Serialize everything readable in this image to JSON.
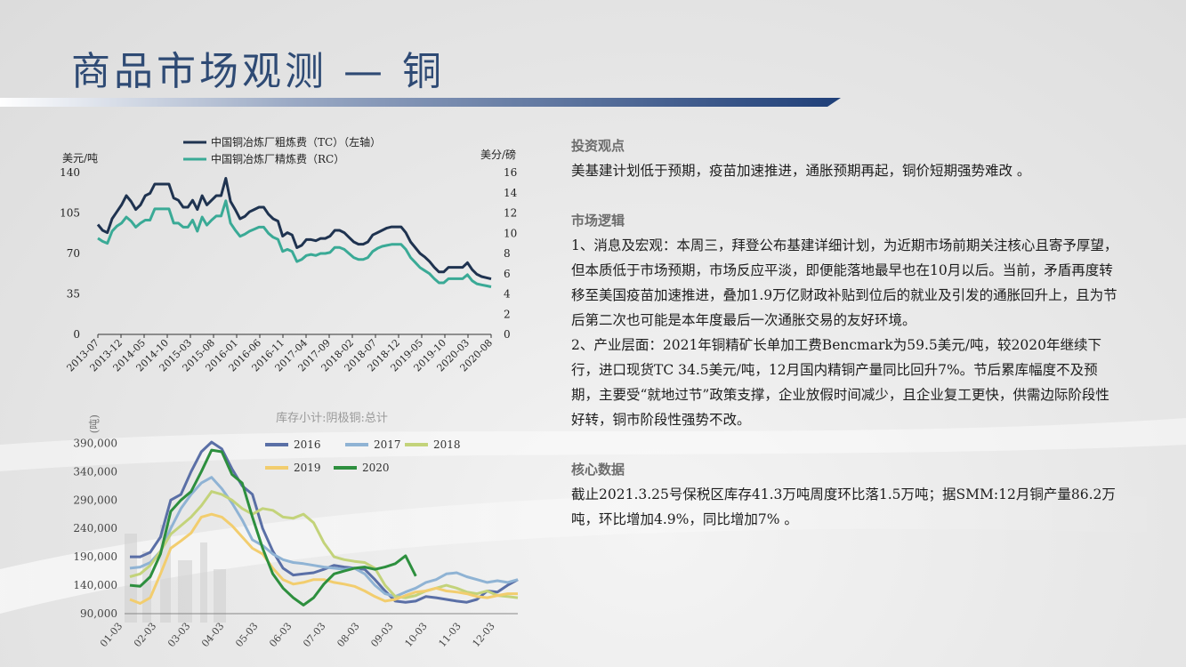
{
  "page": {
    "title": "商品市场观测 — 铜"
  },
  "right_panel": {
    "investment_view": {
      "heading": "投资观点",
      "text": "美基建计划低于预期，疫苗加速推进，通胀预期再起，铜价短期强势难改 。"
    },
    "market_logic": {
      "heading": "市场逻辑",
      "p1": "1、消息及宏观：本周三，拜登公布基建详细计划，为近期市场前期关注核心且寄予厚望，但本质低于市场预期，市场反应平淡，即便能落地最早也在10月以后。当前，矛盾再度转移至美国疫苗加速推进，叠加1.9万亿财政补贴到位后的就业及引发的通胀回升上，且为节后第二次也可能是本年度最后一次通胀交易的友好环境。",
      "p2": "2、产业层面：2021年铜精矿长单加工费Bencmark为59.5美元/吨，较2020年继续下行，进口现货TC 34.5美元/吨，12月国内精铜产量同比回升7%。节后累库幅度不及预期，主要受“就地过节”政策支撑，企业放假时间减少，且企业复工更快，供需边际阶段性好转，铜市阶段性强势不改。"
    },
    "core_data": {
      "heading": "核心数据",
      "text": "截止2021.3.25号保税区库存41.3万吨周度环比落1.5万吨；据SMM:12月铜产量86.2万吨，环比增加4.9%，同比增加7% 。"
    }
  },
  "chart_data": [
    {
      "type": "line",
      "legend_placement": "top",
      "left_unit": "美元/吨",
      "right_unit": "美分/磅",
      "left_ylim": [
        0,
        140
      ],
      "left_ticks": [
        "0",
        "35",
        "70",
        "105",
        "140"
      ],
      "right_ylim": [
        0,
        16
      ],
      "right_ticks": [
        "0",
        "2",
        "4",
        "6",
        "8",
        "10",
        "12",
        "14",
        "16"
      ],
      "x_ticks": [
        "2013-07",
        "2013-12",
        "2014-05",
        "2014-10",
        "2015-03",
        "2015-08",
        "2016-01",
        "2016-06",
        "2016-11",
        "2017-04",
        "2017-09",
        "2018-02",
        "2018-07",
        "2018-12",
        "2019-05",
        "2019-10",
        "2020-03",
        "2020-08"
      ],
      "series": [
        {
          "name": "中国铜冶炼厂粗炼费（TC）（左轴）",
          "color": "#1f3350",
          "axis": "left",
          "values": [
            95,
            90,
            88,
            100,
            106,
            112,
            120,
            115,
            108,
            112,
            120,
            122,
            130,
            130,
            130,
            130,
            118,
            116,
            110,
            110,
            116,
            108,
            120,
            112,
            116,
            120,
            120,
            135,
            115,
            108,
            100,
            102,
            106,
            108,
            110,
            110,
            104,
            100,
            98,
            85,
            88,
            86,
            75,
            77,
            82,
            82,
            81,
            83,
            83,
            85,
            90,
            90,
            88,
            84,
            80,
            78,
            78,
            80,
            86,
            88,
            90,
            92,
            93,
            93,
            93,
            88,
            80,
            75,
            70,
            67,
            63,
            58,
            54,
            54,
            58,
            58,
            58,
            58,
            62,
            56,
            52,
            50,
            49,
            48
          ]
        },
        {
          "name": "中国铜冶炼厂精炼费（RC）",
          "color": "#3aaa96",
          "axis": "right",
          "values": [
            9.5,
            9.2,
            9.0,
            10.2,
            10.7,
            11.0,
            11.6,
            11.2,
            10.6,
            11.0,
            11.3,
            11.3,
            12.4,
            12.4,
            12.4,
            12.4,
            11.0,
            11.0,
            10.6,
            10.6,
            11.3,
            10.2,
            11.6,
            10.8,
            11.3,
            11.7,
            11.7,
            13.2,
            11.0,
            10.3,
            9.7,
            9.9,
            10.2,
            10.4,
            10.6,
            10.6,
            10.0,
            9.6,
            9.4,
            8.2,
            8.4,
            8.2,
            7.2,
            7.4,
            7.8,
            7.9,
            7.8,
            8.0,
            8.0,
            8.1,
            8.6,
            8.6,
            8.4,
            8.0,
            7.6,
            7.4,
            7.4,
            7.6,
            8.2,
            8.5,
            8.7,
            8.8,
            8.9,
            8.9,
            8.9,
            8.4,
            7.6,
            7.1,
            6.6,
            6.3,
            6.0,
            5.5,
            5.1,
            5.1,
            5.5,
            5.5,
            5.5,
            5.5,
            5.9,
            5.3,
            5.0,
            4.9,
            4.8,
            4.7
          ]
        }
      ]
    },
    {
      "type": "line",
      "title": "库存小计:阴极铜:总计",
      "ylabel": "(吨)",
      "ylim": [
        90000,
        400000
      ],
      "y_ticks": [
        "90,000",
        "140,000",
        "190,000",
        "240,000",
        "290,000",
        "340,000",
        "390,000"
      ],
      "x_ticks": [
        "01-03",
        "02-03",
        "03-03",
        "04-03",
        "05-03",
        "06-03",
        "07-03",
        "08-03",
        "09-03",
        "10-03",
        "11-03",
        "12-03"
      ],
      "legend_placement": "top-right",
      "series": [
        {
          "name": "2016",
          "color": "#5a6fa6",
          "values": [
            190000,
            190000,
            198000,
            225000,
            290000,
            300000,
            340000,
            375000,
            392000,
            380000,
            345000,
            315000,
            300000,
            240000,
            200000,
            170000,
            158000,
            160000,
            162000,
            168000,
            175000,
            172000,
            170000,
            168000,
            150000,
            130000,
            112000,
            110000,
            112000,
            120000,
            118000,
            115000,
            112000,
            110000,
            115000,
            130000,
            128000,
            140000,
            150000
          ]
        },
        {
          "name": "2017",
          "color": "#8fb3d4",
          "values": [
            170000,
            172000,
            180000,
            200000,
            240000,
            275000,
            300000,
            320000,
            330000,
            310000,
            285000,
            255000,
            220000,
            210000,
            195000,
            185000,
            180000,
            178000,
            175000,
            172000,
            170000,
            168000,
            170000,
            160000,
            140000,
            125000,
            120000,
            128000,
            135000,
            145000,
            150000,
            160000,
            162000,
            155000,
            150000,
            145000,
            148000,
            145000,
            150000
          ]
        },
        {
          "name": "2018",
          "color": "#c3d37a",
          "values": [
            155000,
            160000,
            175000,
            200000,
            230000,
            245000,
            260000,
            280000,
            305000,
            300000,
            290000,
            275000,
            265000,
            275000,
            272000,
            260000,
            258000,
            265000,
            250000,
            215000,
            190000,
            185000,
            182000,
            180000,
            170000,
            140000,
            120000,
            118000,
            122000,
            130000,
            135000,
            140000,
            135000,
            128000,
            125000,
            130000,
            122000,
            120000,
            118000
          ]
        },
        {
          "name": "2019",
          "color": "#f2cd6e",
          "values": [
            115000,
            108000,
            118000,
            160000,
            205000,
            218000,
            232000,
            260000,
            265000,
            260000,
            245000,
            225000,
            205000,
            195000,
            170000,
            150000,
            142000,
            145000,
            150000,
            150000,
            145000,
            142000,
            138000,
            130000,
            120000,
            112000,
            115000,
            122000,
            128000,
            130000,
            135000,
            130000,
            128000,
            125000,
            120000,
            118000,
            122000,
            125000,
            125000
          ]
        },
        {
          "name": "2020",
          "color": "#2d8f3e",
          "values": [
            140000,
            138000,
            155000,
            195000,
            270000,
            290000,
            305000,
            340000,
            378000,
            375000,
            335000,
            320000,
            260000,
            205000,
            160000,
            135000,
            118000,
            105000,
            118000,
            142000,
            160000,
            165000,
            170000,
            172000,
            168000,
            172000,
            178000,
            192000,
            156000
          ]
        }
      ]
    }
  ]
}
